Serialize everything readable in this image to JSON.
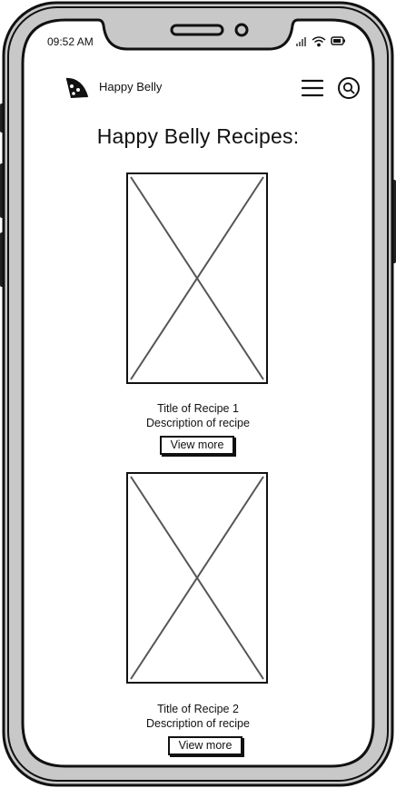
{
  "status": {
    "time": "09:52 AM"
  },
  "header": {
    "brand_name": "Happy Belly",
    "logo_icon": "pizza-slice-icon",
    "menu_icon": "hamburger-menu-icon",
    "search_icon": "search-icon"
  },
  "main": {
    "title": "Happy Belly Recipes:",
    "recipes": [
      {
        "title": "Title of Recipe 1",
        "description": "Description of recipe",
        "button_label": "View more",
        "image": "image-placeholder"
      },
      {
        "title": "Title of Recipe 2",
        "description": "Description of recipe",
        "button_label": "View more",
        "image": "image-placeholder"
      }
    ]
  },
  "colors": {
    "outline": "#111111",
    "bezel": "#c8c8c8",
    "screen": "#ffffff",
    "placeholder_lines": "#555555"
  }
}
